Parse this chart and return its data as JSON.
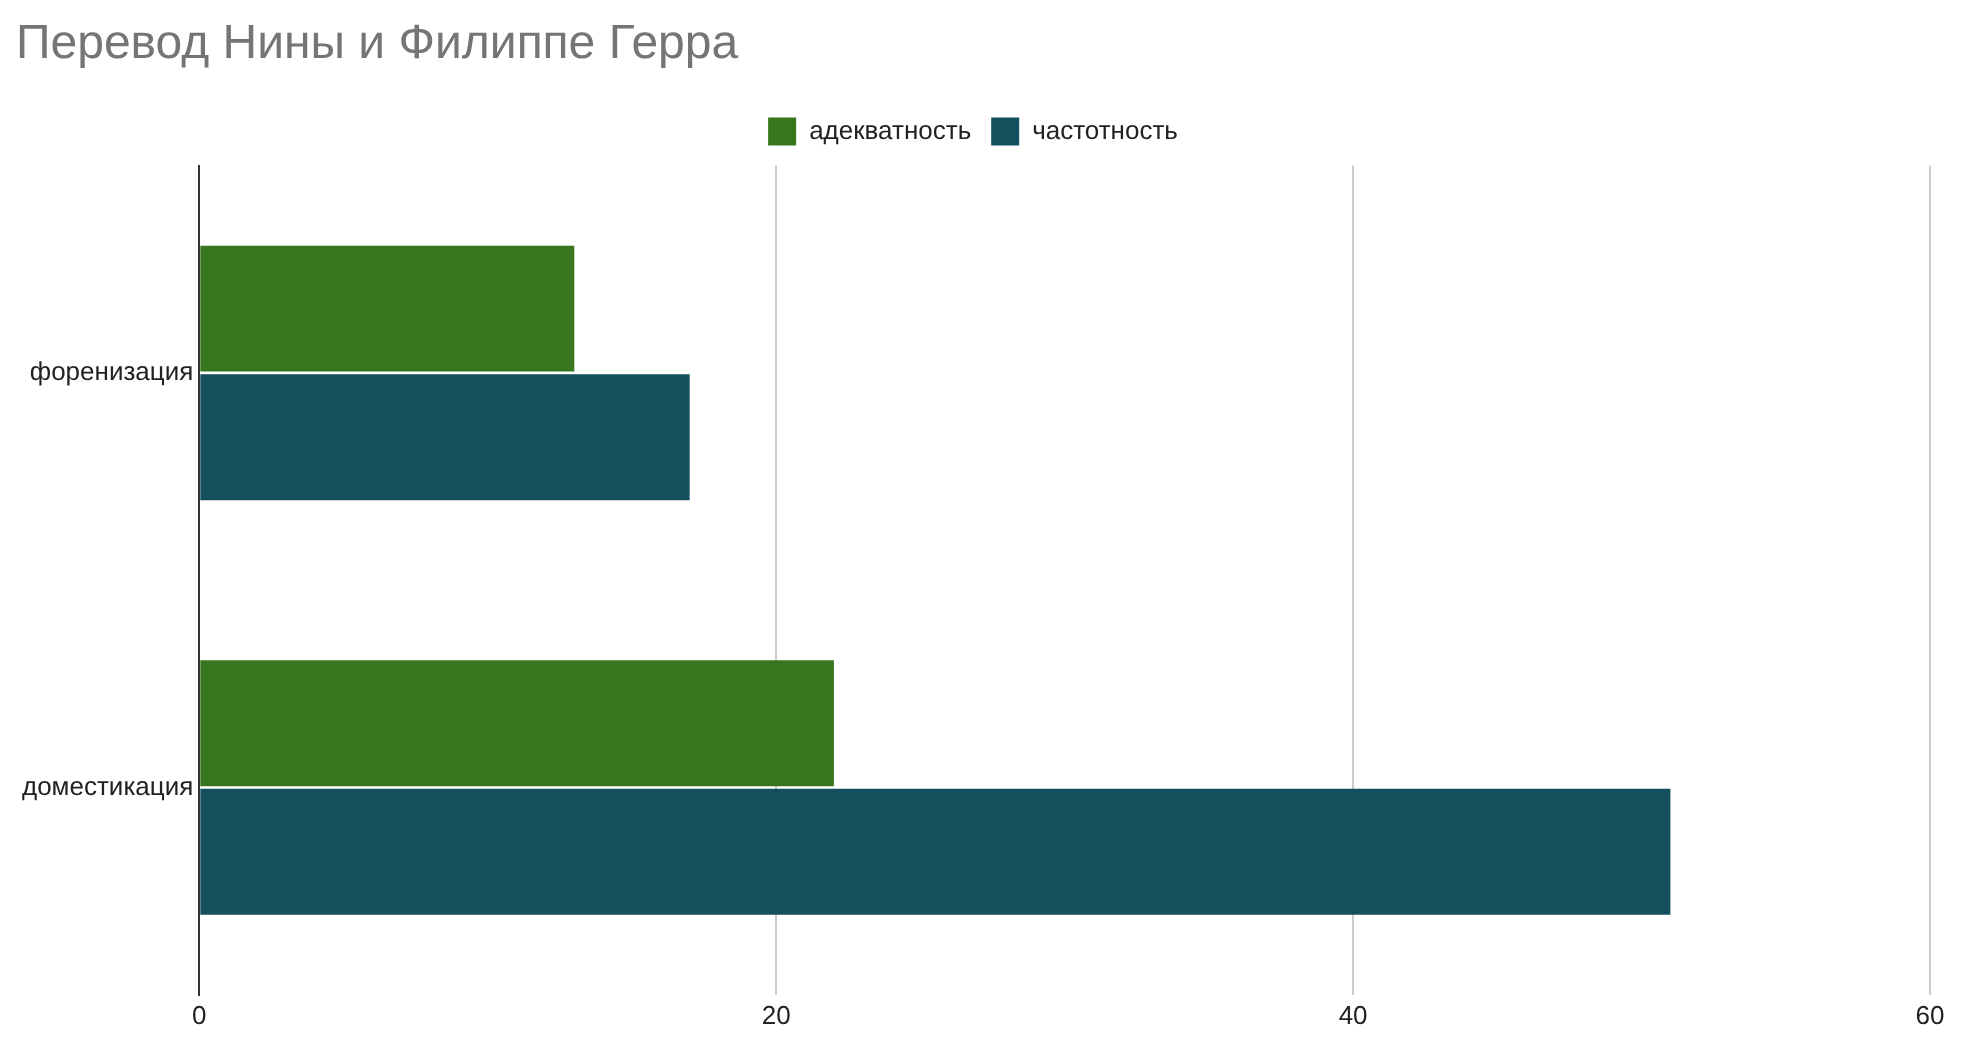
{
  "chart_data": {
    "type": "bar",
    "orientation": "horizontal",
    "title": "Перевод Нины и Филиппе Герра",
    "categories": [
      "форенизация",
      "доместикация"
    ],
    "series": [
      {
        "name": "адекватность",
        "color": "#38761d",
        "values": [
          13,
          22
        ]
      },
      {
        "name": "частотность",
        "color": "#134f5c",
        "values": [
          17,
          51
        ]
      }
    ],
    "xlim": [
      0,
      60
    ],
    "xticks": [
      0,
      20,
      40,
      60
    ],
    "grid": "x",
    "legend": "top"
  }
}
